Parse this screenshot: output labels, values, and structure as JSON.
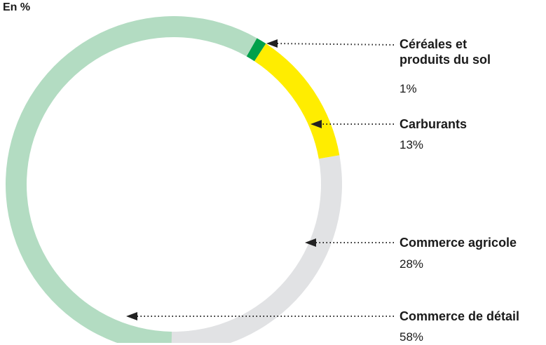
{
  "chart_data": {
    "type": "donut",
    "title": "En %",
    "categories": [
      "Céréales et\nproduits du sol",
      "Carburants",
      "Commerce agricole",
      "Commerce de détail"
    ],
    "values": [
      1,
      13,
      28,
      58
    ],
    "value_labels": [
      "1%",
      "13%",
      "28%",
      "58%"
    ],
    "colors": [
      "#00a04b",
      "#ffed00",
      "#e1e2e4",
      "#b3dcc2"
    ]
  }
}
